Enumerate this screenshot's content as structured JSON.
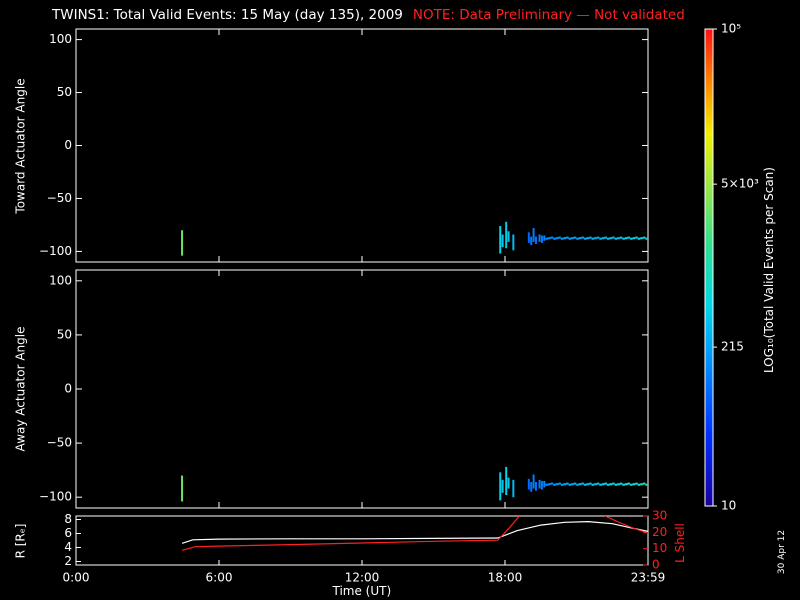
{
  "header": {
    "title": "TWINS1: Total Valid Events: 15 May (day 135), 2009",
    "note": "NOTE: Data Preliminary — Not validated",
    "note_color": "#ff2020"
  },
  "stamp": "30 Apr 12",
  "chart_data": [
    {
      "id": "toward",
      "type": "heatmap",
      "ylabel": "Toward Actuator Angle",
      "xlim": [
        0,
        24
      ],
      "ylim": [
        -110,
        110
      ],
      "yticks": [
        100,
        50,
        0,
        -50,
        -100
      ],
      "ytick_labels": [
        "100",
        "50",
        "0",
        "−50",
        "−100"
      ],
      "events": [
        {
          "t": 4.45,
          "y0": -104,
          "y1": -80,
          "v": 3000
        },
        {
          "t": 17.8,
          "y0": -102,
          "y1": -76,
          "v": 450
        },
        {
          "t": 17.9,
          "y0": -96,
          "y1": -84,
          "v": 380
        },
        {
          "t": 18.05,
          "y0": -97,
          "y1": -72,
          "v": 420
        },
        {
          "t": 18.15,
          "y0": -91,
          "y1": -81,
          "v": 350
        },
        {
          "t": 18.35,
          "y0": -99,
          "y1": -84,
          "v": 300
        },
        {
          "t": 19.0,
          "y0": -92,
          "y1": -82,
          "v": 90
        },
        {
          "t": 19.1,
          "y0": -94,
          "y1": -86,
          "v": 110
        },
        {
          "t": 19.2,
          "y0": -91,
          "y1": -78,
          "v": 120
        },
        {
          "t": 19.3,
          "y0": -93,
          "y1": -86,
          "v": 100
        },
        {
          "t": 19.45,
          "y0": -91,
          "y1": -84,
          "v": 130
        },
        {
          "t": 19.55,
          "y0": -92,
          "y1": -85,
          "v": 115
        },
        {
          "t": 19.65,
          "y0": -90,
          "y1": -85,
          "v": 140
        }
      ],
      "trail": {
        "t_start": 19.7,
        "t_end": 24.0,
        "y0": -89,
        "y1": -86,
        "v_start": 150,
        "v_end": 500
      }
    },
    {
      "id": "away",
      "type": "heatmap",
      "ylabel": "Away Actuator Angle",
      "xlim": [
        0,
        24
      ],
      "ylim": [
        -110,
        110
      ],
      "yticks": [
        100,
        50,
        0,
        -50,
        -100
      ],
      "ytick_labels": [
        "100",
        "50",
        "0",
        "−50",
        "−100"
      ],
      "events": [
        {
          "t": 4.45,
          "y0": -104,
          "y1": -80,
          "v": 3000
        },
        {
          "t": 17.8,
          "y0": -103,
          "y1": -77,
          "v": 420
        },
        {
          "t": 17.9,
          "y0": -96,
          "y1": -84,
          "v": 350
        },
        {
          "t": 18.05,
          "y0": -98,
          "y1": -72,
          "v": 440
        },
        {
          "t": 18.15,
          "y0": -92,
          "y1": -82,
          "v": 360
        },
        {
          "t": 18.35,
          "y0": -100,
          "y1": -84,
          "v": 300
        },
        {
          "t": 19.0,
          "y0": -93,
          "y1": -83,
          "v": 90
        },
        {
          "t": 19.1,
          "y0": -95,
          "y1": -86,
          "v": 110
        },
        {
          "t": 19.2,
          "y0": -92,
          "y1": -79,
          "v": 120
        },
        {
          "t": 19.3,
          "y0": -94,
          "y1": -86,
          "v": 100
        },
        {
          "t": 19.45,
          "y0": -92,
          "y1": -84,
          "v": 130
        },
        {
          "t": 19.55,
          "y0": -93,
          "y1": -85,
          "v": 115
        },
        {
          "t": 19.65,
          "y0": -91,
          "y1": -85,
          "v": 140
        }
      ],
      "trail": {
        "t_start": 19.7,
        "t_end": 24.0,
        "y0": -90,
        "y1": -86,
        "v_start": 150,
        "v_end": 900
      }
    },
    {
      "id": "orbit",
      "type": "line",
      "xlabel": "Time (UT)",
      "xlim": [
        0,
        24
      ],
      "xticks": [
        0,
        6,
        12,
        18,
        24
      ],
      "xtick_labels": [
        "0:00",
        "6:00",
        "12:00",
        "18:00",
        "23:59"
      ],
      "ylabel_left": "R [Rₑ]",
      "ylim_left": [
        1.5,
        8.5
      ],
      "yticks_left": [
        2,
        4,
        6,
        8
      ],
      "ylabel_right": "L Shell",
      "ylim_right": [
        0,
        30
      ],
      "yticks_right": [
        0,
        10,
        20,
        30
      ],
      "right_color": "#ff2020",
      "series": [
        {
          "axis": "left",
          "color": "#ffffff",
          "x": [
            4.45,
            4.9,
            6,
            9,
            12,
            15,
            17.7,
            18.5,
            19.5,
            20.5,
            21.5,
            22.5,
            23.3,
            24
          ],
          "y": [
            4.6,
            5.1,
            5.2,
            5.25,
            5.25,
            5.3,
            5.35,
            6.4,
            7.2,
            7.6,
            7.7,
            7.4,
            6.8,
            6.3
          ]
        },
        {
          "axis": "right",
          "color": "#ff2020",
          "x": [
            4.45,
            5.0,
            6,
            9,
            12,
            15,
            17.7,
            18.2,
            18.6
          ],
          "y": [
            9.0,
            11.2,
            11.6,
            12.5,
            13.5,
            14.5,
            15.2,
            23.0,
            30.0
          ]
        },
        {
          "axis": "right",
          "color": "#ff2020",
          "x": [
            22.2,
            22.8,
            23.4,
            24
          ],
          "y": [
            30.0,
            26.0,
            22.5,
            19.5
          ]
        }
      ]
    }
  ],
  "colorbar": {
    "label": "LOG₁₀(Total Valid Events per Scan)",
    "vmin": 10,
    "vmax": 100000,
    "ticks": [
      100000,
      5000,
      215,
      10
    ],
    "tick_labels": [
      "10⁵",
      "5×10³",
      "215",
      "10"
    ]
  }
}
